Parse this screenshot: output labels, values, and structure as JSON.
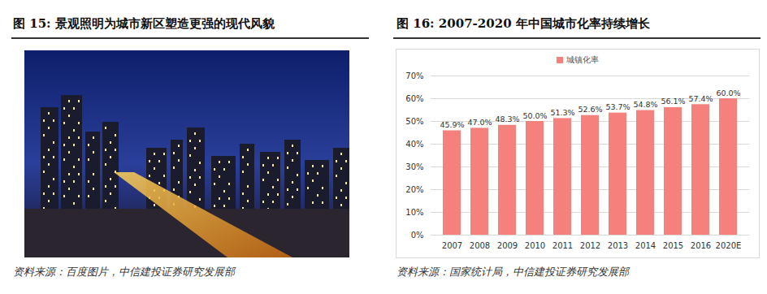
{
  "figure15": {
    "title": "图 15: 景观照明为城市新区塑造更强的现代风貌",
    "source": "资料来源：百度图片，中信建投证券研究发展部"
  },
  "chart_data": {
    "type": "bar",
    "title": "图 16: 2007-2020 年中国城市化率持续增长",
    "source": "资料来源：国家统计局，中信建投证券研究发展部",
    "categories": [
      "2007",
      "2008",
      "2009",
      "2010",
      "2011",
      "2012",
      "2013",
      "2014",
      "2015",
      "2016",
      "2020E"
    ],
    "series": [
      {
        "name": "城镇化率",
        "color": "#f4817c",
        "values": [
          45.9,
          47.0,
          48.3,
          50.0,
          51.3,
          52.6,
          53.7,
          54.8,
          56.1,
          57.4,
          60.0
        ],
        "value_labels": [
          "45.9%",
          "47.0%",
          "48.3%",
          "50.0%",
          "51.3%",
          "52.6%",
          "53.7%",
          "54.8%",
          "56.1%",
          "57.4%",
          "60.0%"
        ]
      }
    ],
    "ylim": [
      0,
      70
    ],
    "yticks": [
      {
        "value": 0,
        "label": "0%"
      },
      {
        "value": 10,
        "label": "10%"
      },
      {
        "value": 20,
        "label": "20%"
      },
      {
        "value": 30,
        "label": "30%"
      },
      {
        "value": 40,
        "label": "40%"
      },
      {
        "value": 50,
        "label": "50%"
      },
      {
        "value": 60,
        "label": "60%"
      },
      {
        "value": 70,
        "label": "70%"
      }
    ],
    "grid": true,
    "legend": "top",
    "data_labels": true
  }
}
